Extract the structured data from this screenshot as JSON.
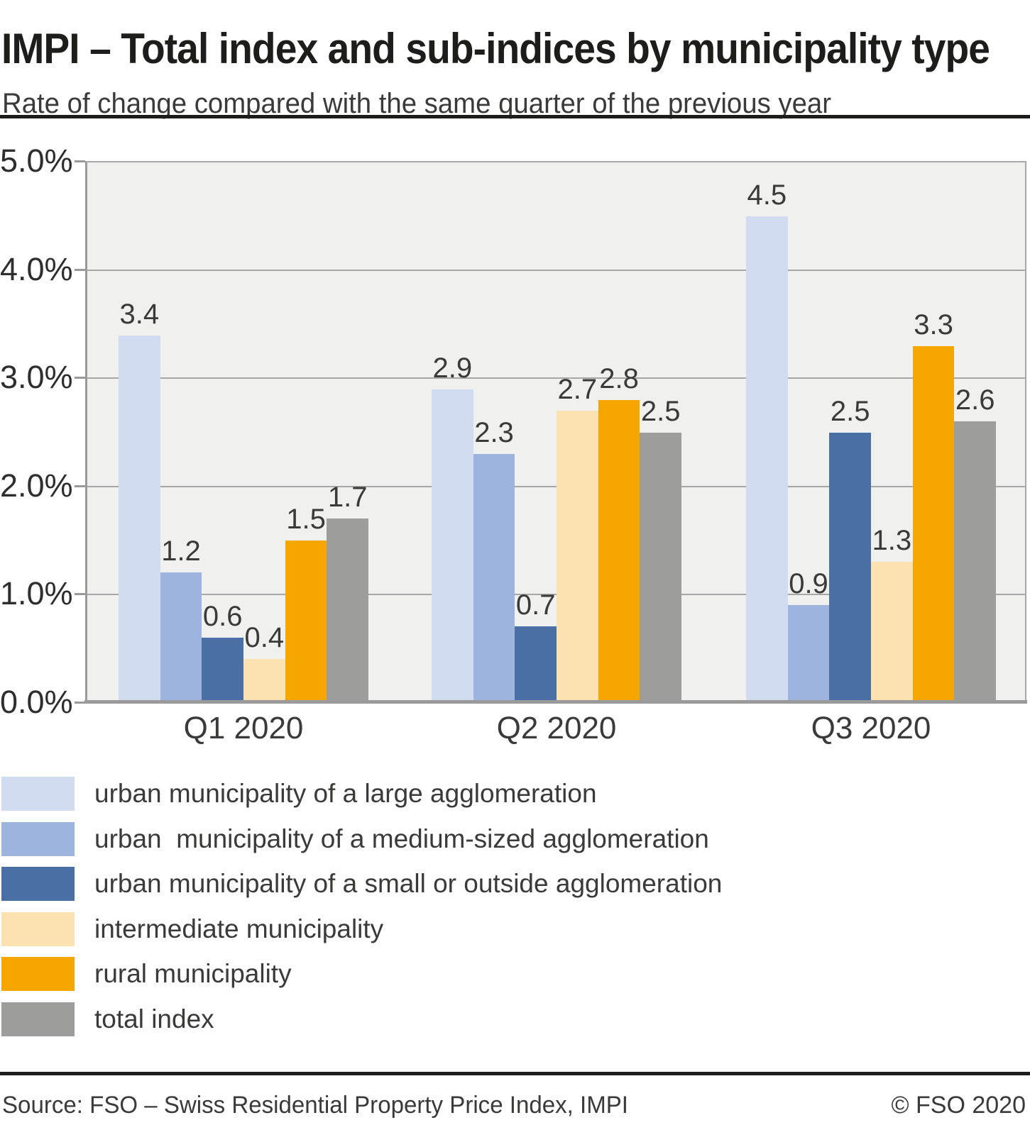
{
  "chart_data": {
    "type": "bar",
    "title": "IMPI – Total index and sub-indices by municipality type",
    "subtitle": "Rate of change compared with the same quarter of the previous year",
    "categories": [
      "Q1 2020",
      "Q2 2020",
      "Q3 2020"
    ],
    "series": [
      {
        "name": "urban municipality of a large agglomeration",
        "color": "#d2dcf0",
        "values": [
          3.4,
          2.9,
          4.5
        ]
      },
      {
        "name": "urban  municipality of a medium-sized agglomeration",
        "color": "#9db5de",
        "values": [
          1.2,
          2.3,
          0.9
        ]
      },
      {
        "name": "urban municipality of a small or outside agglomeration",
        "color": "#4a6fa5",
        "values": [
          0.6,
          0.7,
          2.5
        ]
      },
      {
        "name": "intermediate municipality",
        "color": "#fce2b0",
        "values": [
          0.4,
          2.7,
          1.3
        ]
      },
      {
        "name": "rural municipality",
        "color": "#f5a700",
        "values": [
          1.5,
          2.8,
          3.3
        ]
      },
      {
        "name": "total index",
        "color": "#9d9d9c",
        "values": [
          1.7,
          2.5,
          2.6
        ]
      }
    ],
    "y_axis": {
      "min": 0,
      "max": 5,
      "tick_step": 1.0,
      "unit": "%",
      "tick_labels": [
        "5.0%",
        "4.0%",
        "3.0%",
        "2.0%",
        "1.0%",
        "0.0%"
      ]
    },
    "xlabel": "",
    "ylabel": "",
    "grid": true,
    "value_labels": true,
    "value_label_decimals": 1,
    "legend_position": "bottom-left",
    "colors": {
      "plot_background": "#f0f0ef",
      "gridline": "#a7a7a7",
      "axis_line": "#9a9a9a",
      "divider": "#1d1d1b",
      "text": "#3a3a39"
    }
  },
  "footer": {
    "source": "Source: FSO – Swiss Residential Property Price Index, IMPI",
    "copyright": "© FSO 2020"
  }
}
